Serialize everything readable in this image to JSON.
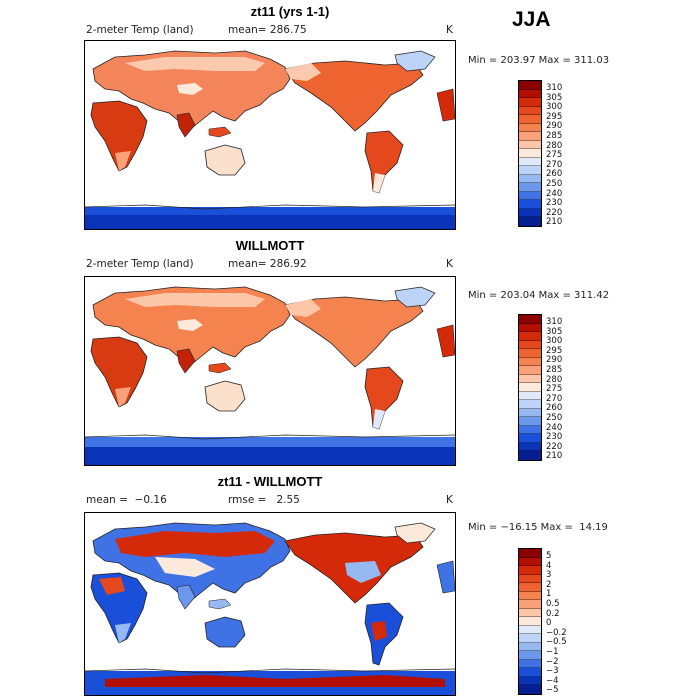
{
  "season": "JJA",
  "panels": [
    {
      "title": "zt11 (yrs 1-1)",
      "left_label": "2-meter Temp (land)",
      "mid_label": "mean= 286.75",
      "units": "K",
      "minmax": "Min = 203.97 Max = 311.03",
      "levels": [
        "310",
        "305",
        "300",
        "295",
        "290",
        "285",
        "280",
        "275",
        "270",
        "260",
        "250",
        "240",
        "230",
        "220",
        "210"
      ]
    },
    {
      "title": "WILLMOTT",
      "left_label": "2-meter Temp (land)",
      "mid_label": "mean= 286.92",
      "units": "K",
      "minmax": "Min = 203.04 Max = 311.42",
      "levels": [
        "310",
        "305",
        "300",
        "295",
        "290",
        "285",
        "280",
        "275",
        "270",
        "260",
        "250",
        "240",
        "230",
        "220",
        "210"
      ]
    },
    {
      "title": "zt11 - WILLMOTT",
      "left_label": "mean =  −0.16",
      "mid_label": "rmse =   2.55",
      "units": "K",
      "minmax": "Min = −16.15 Max =  14.19",
      "levels": [
        "5",
        "4",
        "3",
        "2",
        "1",
        "0.5",
        "0.2",
        "0",
        "−0.2",
        "−0.5",
        "−1",
        "−2",
        "−3",
        "−4",
        "−5"
      ]
    }
  ],
  "colors": [
    "#8b0000",
    "#b30f00",
    "#d42a0a",
    "#e4481c",
    "#ee6430",
    "#f5834f",
    "#f9a178",
    "#fcc6a8",
    "#fbe9dc",
    "#dfe9fa",
    "#bdd3f7",
    "#97b9f2",
    "#6b97ec",
    "#3f73e5",
    "#1a4fd9",
    "#0b33b8",
    "#061e8f"
  ]
}
